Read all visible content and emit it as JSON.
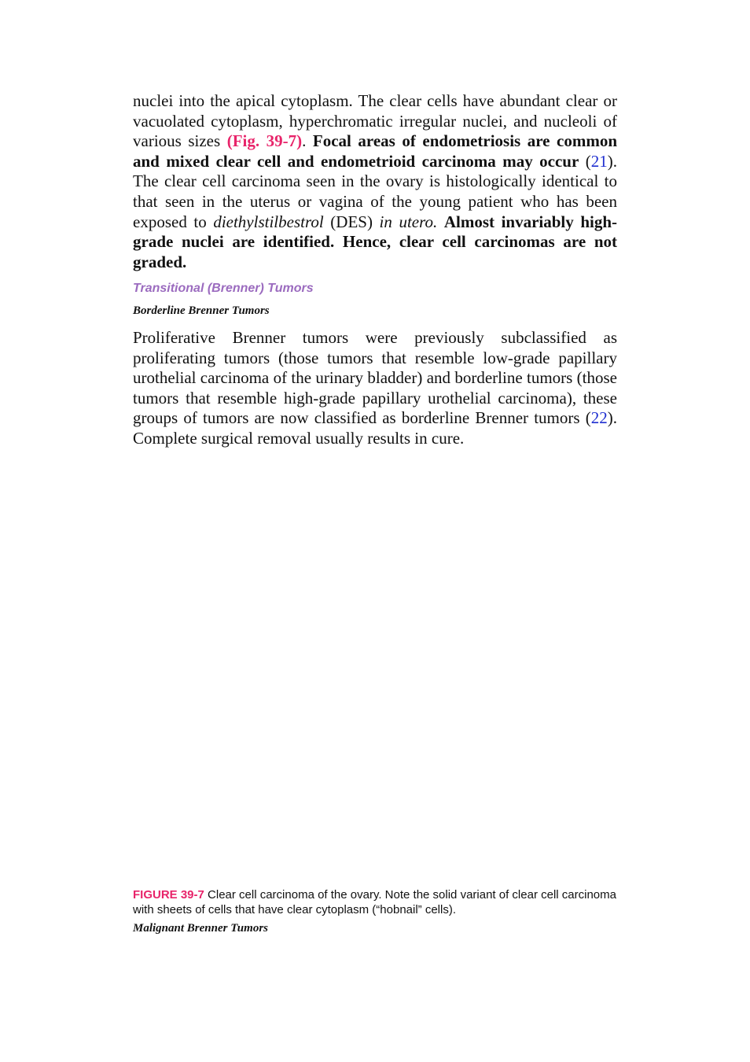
{
  "paragraph_1": {
    "runs": [
      "nuclei into the apical cytoplasm. The clear cells have abundant clear or vacuolated cytoplasm, hyperchromatic irregular nuclei, and nucleoli of various sizes",
      "(Fig. 39-7)",
      ".",
      "Focal areas of endometriosis are common and mixed clear cell and endometrioid carcinoma may occur",
      "(",
      "21",
      "). The clear cell carcinoma seen in the ovary is histologically identical to that seen in the uterus or vagina of the young patient who has been exposed to",
      "diethylstilbestrol",
      "(DES)",
      "in utero.",
      "Almost invariably high-grade nuclei are identified. Hence, clear cell carcinomas are not graded."
    ]
  },
  "section_heading": "Transitional (Brenner) Tumors",
  "subsection_heading": "Borderline Brenner Tumors",
  "paragraph_2": {
    "runs": [
      "Proliferative Brenner tumors were previously subclassified as proliferating tumors (those tumors that resemble low-grade papillary urothelial carcinoma of the urinary bladder) and borderline tumors (those tumors that resemble high-grade papillary urothelial carcinoma), these groups of tumors are now classified as borderline Brenner tumors",
      "(",
      "22",
      "). Complete surgical removal usually results in cure."
    ]
  },
  "figure_caption": {
    "label": "FIGURE 39-7",
    "text": "Clear cell carcinoma of the ovary. Note the solid variant of clear cell carcinoma with sheets of cells that have clear cytoplasm (“hobnail” cells)."
  },
  "next_heading": "Malignant Brenner Tumors"
}
